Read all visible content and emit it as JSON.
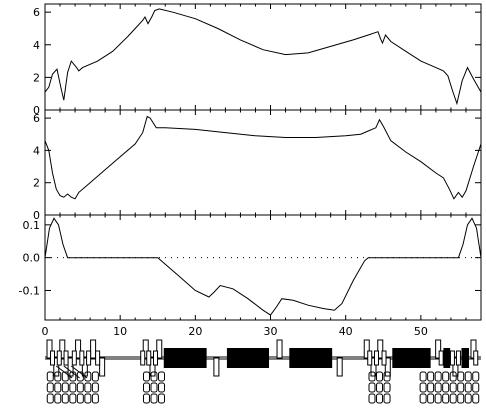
{
  "chart_data": [
    {
      "type": "line",
      "title": "",
      "xlabel": "",
      "ylabel": "",
      "xlim": [
        0,
        58
      ],
      "ylim": [
        0,
        6.5
      ],
      "x_ticks": [
        0,
        10,
        20,
        30,
        40,
        50
      ],
      "y_ticks": [
        0,
        2,
        4,
        6
      ],
      "y_tick_labels": [
        "0",
        "2",
        "4",
        "6"
      ],
      "series": [
        {
          "x": [
            0,
            0.5,
            1,
            1.6,
            2.1,
            2.5,
            3,
            3.5,
            4.2,
            4.5,
            5,
            7,
            9,
            11,
            12,
            13,
            13.3,
            13.7,
            14.2,
            14.6,
            15.2,
            17,
            20,
            23,
            26,
            29,
            32,
            35,
            38,
            41,
            43,
            44.3,
            44.6,
            44.9,
            45.3,
            46,
            48,
            50,
            52,
            53,
            53.6,
            54.2,
            54.8,
            55.5,
            56.2,
            57,
            58
          ],
          "y": [
            1.1,
            1.4,
            2.2,
            2.5,
            1.4,
            0.6,
            2.3,
            3.0,
            2.6,
            2.4,
            2.6,
            3.0,
            3.6,
            4.5,
            5.0,
            5.5,
            5.7,
            5.3,
            5.7,
            6.1,
            6.2,
            6.0,
            5.6,
            5.0,
            4.3,
            3.7,
            3.4,
            3.5,
            3.9,
            4.3,
            4.6,
            4.8,
            4.4,
            4.1,
            4.6,
            4.2,
            3.6,
            3.0,
            2.6,
            2.4,
            2.1,
            1.2,
            0.4,
            1.8,
            2.6,
            1.9,
            1.1
          ]
        }
      ]
    },
    {
      "type": "line",
      "title": "",
      "xlabel": "",
      "ylabel": "",
      "xlim": [
        0,
        58
      ],
      "ylim": [
        0,
        6.5
      ],
      "x_ticks": [
        0,
        10,
        20,
        30,
        40,
        50
      ],
      "y_ticks": [
        0,
        2,
        4,
        6
      ],
      "y_tick_labels": [
        "0",
        "2",
        "4",
        "6"
      ],
      "series": [
        {
          "x": [
            0,
            0.5,
            1,
            1.5,
            2,
            2.5,
            3,
            3.5,
            4,
            4.5,
            6,
            8,
            10,
            12,
            13,
            13.6,
            14,
            14.4,
            14.8,
            16,
            20,
            24,
            28,
            32,
            36,
            40,
            42,
            43,
            44,
            44.5,
            45,
            46,
            48,
            50,
            52,
            53,
            53.8,
            54.4,
            55,
            55.5,
            56,
            57,
            58
          ],
          "y": [
            4.6,
            4.0,
            2.6,
            1.6,
            1.2,
            1.1,
            1.3,
            1.1,
            1.0,
            1.4,
            2.0,
            2.8,
            3.6,
            4.4,
            5.1,
            6.1,
            6.0,
            5.7,
            5.4,
            5.4,
            5.3,
            5.1,
            4.9,
            4.8,
            4.8,
            4.9,
            5.0,
            5.2,
            5.4,
            5.9,
            5.5,
            4.6,
            3.9,
            3.3,
            2.6,
            2.3,
            1.6,
            1.0,
            1.4,
            1.1,
            1.5,
            3.0,
            4.4
          ]
        }
      ]
    },
    {
      "type": "line",
      "title": "",
      "xlabel": "",
      "ylabel": "",
      "xlim": [
        0,
        58
      ],
      "ylim": [
        -0.19,
        0.13
      ],
      "x_ticks": [
        0,
        10,
        20,
        30,
        40,
        50
      ],
      "x_tick_labels": [
        "0",
        "10",
        "20",
        "30",
        "40",
        "50"
      ],
      "y_ticks": [
        0.1,
        0,
        -0.1
      ],
      "y_tick_labels": [
        "0.1",
        "0.0",
        "-0.1"
      ],
      "reference_line": {
        "y": 0,
        "style": "dotted"
      },
      "series": [
        {
          "x": [
            0,
            0.6,
            1.2,
            1.8,
            2.4,
            3,
            5,
            10,
            15,
            16,
            18,
            20,
            21.8,
            22.5,
            23.3,
            25,
            27,
            29,
            30,
            30.8,
            31.5,
            33,
            35,
            37,
            38.5,
            39.5,
            41,
            42.5,
            43,
            45,
            50,
            55,
            55.6,
            56.2,
            56.8,
            57.4,
            58
          ],
          "y": [
            0,
            0.09,
            0.12,
            0.1,
            0.04,
            0,
            0,
            0,
            0,
            -0.02,
            -0.06,
            -0.1,
            -0.12,
            -0.105,
            -0.085,
            -0.095,
            -0.125,
            -0.16,
            -0.175,
            -0.15,
            -0.125,
            -0.13,
            -0.145,
            -0.155,
            -0.16,
            -0.14,
            -0.07,
            -0.01,
            0,
            0,
            0,
            0,
            0.04,
            0.1,
            0.12,
            0.09,
            0
          ]
        }
      ]
    }
  ],
  "lattice": {
    "style": "beamline-elements",
    "xlim": [
      0,
      58
    ],
    "line_color": "#000000",
    "dipoles": [
      {
        "x0": 15.8,
        "x1": 21.5
      },
      {
        "x0": 24.2,
        "x1": 29.8
      },
      {
        "x0": 32.5,
        "x1": 38.2
      },
      {
        "x0": 46.2,
        "x1": 51.3
      },
      {
        "x0": 53.0,
        "x1": 53.9
      },
      {
        "x0": 55.4,
        "x1": 56.4
      }
    ],
    "quadrupoles": [
      0.6,
      1.5,
      2.3,
      3.4,
      4.4,
      5.3,
      6.4,
      7.6,
      13.4,
      14.3,
      15.2,
      22.8,
      31.2,
      39.2,
      42.8,
      43.7,
      44.6,
      45.6,
      52.3,
      54.6,
      57.0
    ],
    "small_elements": [
      1.0,
      1.9,
      2.8,
      3.9,
      4.9,
      5.8,
      7.0,
      13.0,
      13.8,
      14.7,
      43.2,
      44.1,
      45.1,
      52.7,
      54.2,
      55.0,
      57.3
    ],
    "markers": [
      0.7,
      1.7,
      2.7,
      3.7,
      4.7,
      5.7,
      6.7,
      13.5,
      14.5,
      15.5,
      43.5,
      44.5,
      45.5,
      50.3,
      51.3,
      52.3,
      53.3,
      54.3,
      55.3,
      56.3,
      57.3
    ]
  }
}
